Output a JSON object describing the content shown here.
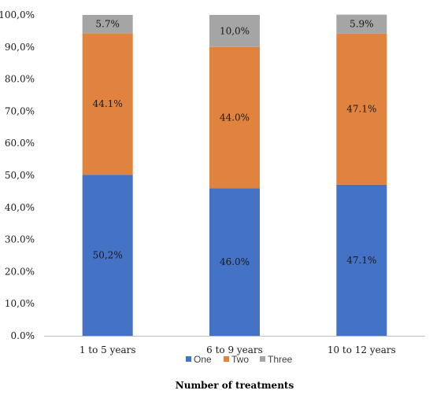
{
  "chart_data": {
    "type": "bar",
    "stacked": true,
    "categories": [
      "1 to 5 years",
      "6 to 9 years",
      "10 to 12 years"
    ],
    "series": [
      {
        "name": "One",
        "values": [
          50.2,
          46.0,
          47.1
        ],
        "labels": [
          "50,2%",
          "46.0%",
          "47.1%"
        ],
        "color": "#4472c4"
      },
      {
        "name": "Two",
        "values": [
          44.1,
          44.0,
          47.1
        ],
        "labels": [
          "44.1%",
          "44.0%",
          "47.1%"
        ],
        "color": "#e0833e"
      },
      {
        "name": "Three",
        "values": [
          5.7,
          10.0,
          5.9
        ],
        "labels": [
          "5.7%",
          "10,0%",
          "5.9%"
        ],
        "color": "#a5a5a5"
      }
    ],
    "ylim": [
      0,
      100
    ],
    "yticks": [
      0,
      10,
      20,
      30,
      40,
      50,
      60,
      70,
      80,
      90,
      100
    ],
    "ytick_labels": [
      "0.0%",
      "10,0%",
      "20.0%",
      "30.0%",
      "40,0%",
      "50,0%",
      "60.0%",
      "70,0%",
      "80.0%",
      "90,0%",
      "100,0%"
    ],
    "xlabel": "Number of treatments",
    "ylabel": "",
    "title": "",
    "grid": false,
    "legend": "bottom"
  }
}
